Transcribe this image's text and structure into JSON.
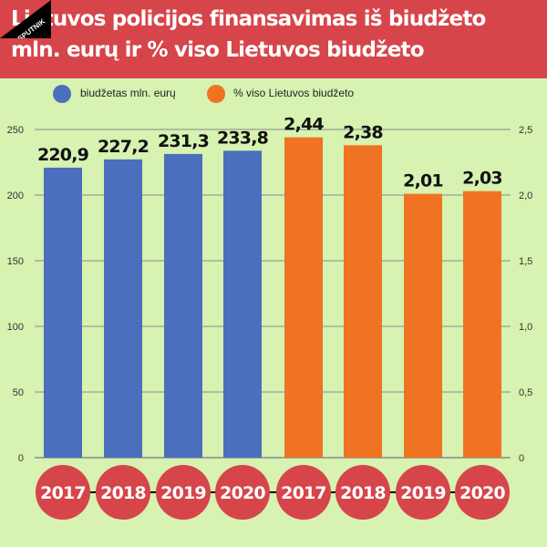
{
  "title_lines": [
    "Lietuvos policijos finansavimas iš biudžeto",
    "mln. eurų ir % viso Lietuvos biudžeto"
  ],
  "colors": {
    "header": "#d6454a",
    "background": "#d7f2b1",
    "blue": "#4a6fbd",
    "orange": "#ef7322",
    "year_circle": "#d6454a"
  },
  "brand": "SPUTNIK",
  "chart_data": {
    "type": "bar",
    "grid": true,
    "legend_position": "top-left",
    "left_axis": {
      "ylim": [
        0,
        250
      ],
      "ticks": [
        0,
        50,
        100,
        150,
        200,
        250
      ]
    },
    "right_axis": {
      "ylim": [
        0,
        2.5
      ],
      "ticks": [
        "0",
        "0,5",
        "1,0",
        "1,5",
        "2,0",
        "2,5"
      ]
    },
    "series": [
      {
        "name": "biudžetas mln. eurų",
        "axis": "left",
        "color": "#4a6fbd",
        "categories": [
          "2017",
          "2018",
          "2019",
          "2020"
        ],
        "values": [
          220.9,
          227.2,
          231.3,
          233.8
        ],
        "labels": [
          "220,9",
          "227,2",
          "231,3",
          "233,8"
        ]
      },
      {
        "name": "% viso Lietuvos biudžeto",
        "axis": "right",
        "color": "#ef7322",
        "categories": [
          "2017",
          "2018",
          "2019",
          "2020"
        ],
        "values": [
          2.44,
          2.38,
          2.01,
          2.03
        ],
        "labels": [
          "2,44",
          "2,38",
          "2,01",
          "2,03"
        ]
      }
    ]
  }
}
